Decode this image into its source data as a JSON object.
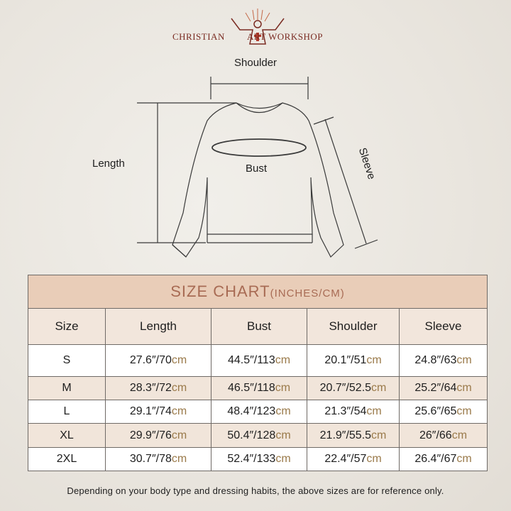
{
  "brand": {
    "left": "CHRISTIAN",
    "right": "ART WORKSHOP"
  },
  "diagram": {
    "shoulder": "Shoulder",
    "length": "Length",
    "bust": "Bust",
    "sleeve": "Sleeve"
  },
  "table": {
    "title": "SIZE CHART",
    "title_units": "(INCHES/CM)",
    "headers": [
      "Size",
      "Length",
      "Bust",
      "Shoulder",
      "Sleeve"
    ],
    "unit_suffix": "cm",
    "rows": [
      {
        "size": "S",
        "cells": [
          "27.6″/70",
          "44.5″/113",
          "20.1″/51",
          "24.8″/63"
        ]
      },
      {
        "size": "M",
        "cells": [
          "28.3″/72",
          "46.5″/118",
          "20.7″/52.5",
          "25.2″/64"
        ]
      },
      {
        "size": "L",
        "cells": [
          "29.1″/74",
          "48.4″/123",
          "21.3″/54",
          "25.6″/65"
        ]
      },
      {
        "size": "XL",
        "cells": [
          "29.9″/76",
          "50.4″/128",
          "21.9″/55.5",
          "26″/66"
        ]
      },
      {
        "size": "2XL",
        "cells": [
          "30.7″/78",
          "52.4″/133",
          "22.4″/57",
          "26.4″/67"
        ]
      }
    ]
  },
  "colors": {
    "brand": "#7a2b22",
    "title_band": "#e9cdb8",
    "title_text": "#a86b54",
    "cm_text": "#9a7a4a"
  },
  "note": "Depending on your body type and dressing habits, the above sizes are for reference only."
}
